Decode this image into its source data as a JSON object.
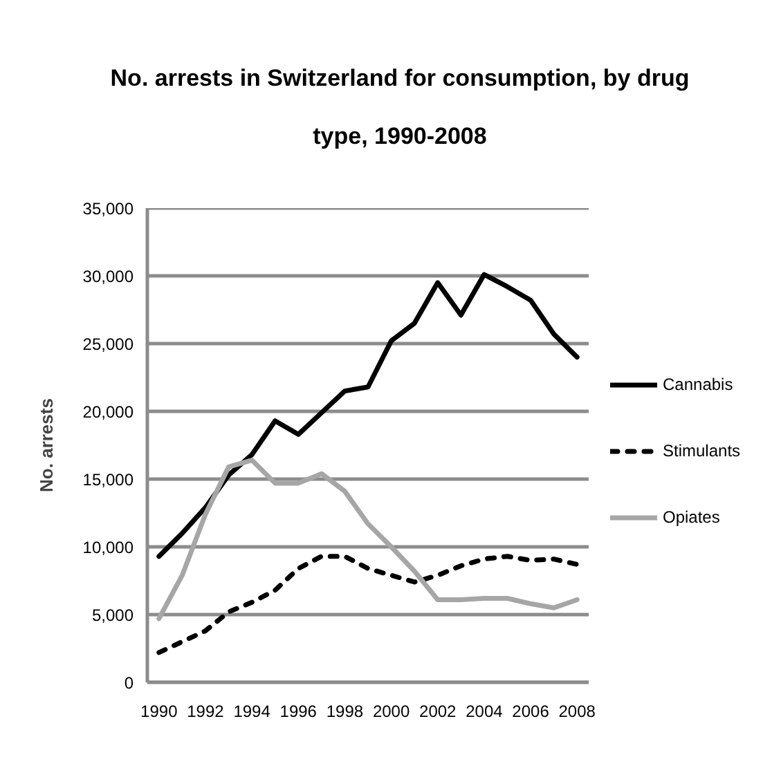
{
  "chart_data": {
    "type": "line",
    "title": "No. arrests in Switzerland for consumption, by drug type, 1990-2008",
    "ylabel": "No. arrests",
    "x": [
      1990,
      1991,
      1992,
      1993,
      1994,
      1995,
      1996,
      1997,
      1998,
      1999,
      2000,
      2001,
      2002,
      2003,
      2004,
      2005,
      2006,
      2007,
      2008
    ],
    "xlim": [
      1989.5,
      2008.5
    ],
    "xticks": [
      1990,
      1992,
      1994,
      1996,
      1998,
      2000,
      2002,
      2004,
      2006,
      2008
    ],
    "ylim": [
      0,
      35000
    ],
    "yticks": [
      0,
      {
        "value": 5000,
        "label": "5,000"
      },
      {
        "value": 10000,
        "label": "10,000"
      },
      {
        "value": 15000,
        "label": "15,000"
      },
      {
        "value": 20000,
        "label": "20,000"
      },
      {
        "value": 25000,
        "label": "25,000"
      },
      {
        "value": 30000,
        "label": "30,000"
      },
      {
        "value": 35000,
        "label": "35,000"
      }
    ],
    "series": [
      {
        "name": "Cannabis",
        "color": "#000000",
        "line_style": "solid",
        "values": [
          9300,
          11000,
          12900,
          15300,
          16800,
          19300,
          18300,
          19900,
          21500,
          21800,
          25200,
          26500,
          29500,
          27100,
          30100,
          29200,
          28200,
          25700,
          24000
        ]
      },
      {
        "name": "Stimulants",
        "color": "#000000",
        "line_style": "dashed",
        "values": [
          2200,
          3000,
          3800,
          5200,
          5900,
          6800,
          8400,
          9300,
          9300,
          8400,
          7900,
          7400,
          7900,
          8600,
          9100,
          9300,
          9000,
          9100,
          8700
        ]
      },
      {
        "name": "Opiates",
        "color": "#a6a6a6",
        "line_style": "solid",
        "values": [
          4700,
          7900,
          12400,
          15900,
          16400,
          14700,
          14700,
          15400,
          14100,
          11700,
          10000,
          8200,
          6100,
          6100,
          6200,
          6200,
          5800,
          5500,
          6100
        ]
      }
    ],
    "grid": "y",
    "legend": "right"
  }
}
